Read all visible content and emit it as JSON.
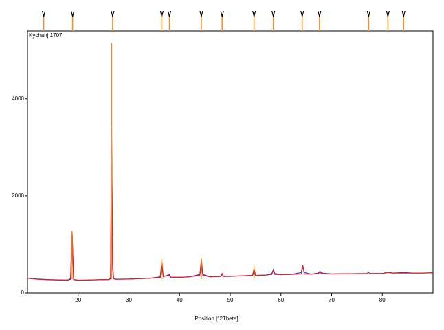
{
  "chart_data": {
    "type": "line",
    "annotation": "Kychanj 1707",
    "x_label": "Position [°2Theta]",
    "xlim": [
      10,
      90
    ],
    "xticks": [
      20,
      30,
      40,
      50,
      60,
      70,
      80
    ],
    "ylim": [
      0,
      5400
    ],
    "yticks": [
      0,
      2000,
      4000
    ],
    "x": [
      10,
      12,
      14,
      16,
      18,
      18.5,
      18.8,
      19.1,
      20,
      22,
      24,
      26,
      26.4,
      26.6,
      26.8,
      27.0,
      27.4,
      30,
      34,
      36.2,
      36.5,
      36.8,
      38.0,
      38.3,
      40,
      42,
      44.0,
      44.3,
      44.6,
      46,
      48.1,
      48.4,
      48.7,
      50,
      52,
      54.4,
      54.7,
      55.0,
      57,
      58.2,
      58.5,
      58.8,
      60,
      62,
      64.0,
      64.3,
      64.6,
      66,
      67.4,
      67.7,
      68.0,
      70,
      74,
      77.0,
      77.3,
      77.6,
      80,
      81.1,
      82,
      84.2,
      86,
      88,
      90
    ],
    "series": [
      {
        "color": "#e0201b",
        "values": [
          300,
          280,
          270,
          265,
          262,
          300,
          1270,
          270,
          260,
          265,
          270,
          275,
          300,
          3400,
          500,
          290,
          280,
          285,
          300,
          320,
          650,
          330,
          380,
          320,
          320,
          330,
          360,
          700,
          360,
          330,
          340,
          400,
          340,
          340,
          350,
          360,
          500,
          360,
          365,
          380,
          470,
          380,
          375,
          380,
          390,
          560,
          390,
          385,
          400,
          430,
          400,
          390,
          395,
          400,
          420,
          400,
          400,
          420,
          410,
          410,
          410,
          410,
          415
        ]
      },
      {
        "color": "#2a2ae0",
        "values": [
          300,
          285,
          275,
          268,
          265,
          280,
          1230,
          275,
          262,
          265,
          270,
          275,
          290,
          3100,
          560,
          300,
          282,
          285,
          300,
          330,
          580,
          340,
          360,
          320,
          320,
          330,
          380,
          560,
          380,
          330,
          340,
          380,
          340,
          340,
          350,
          360,
          420,
          360,
          365,
          400,
          480,
          400,
          375,
          380,
          420,
          570,
          420,
          385,
          410,
          450,
          410,
          390,
          395,
          400,
          420,
          400,
          400,
          430,
          410,
          420,
          410,
          410,
          415
        ]
      }
    ],
    "sticks": {
      "color": "#ff8c1a",
      "x": [
        18.8,
        26.6,
        36.5,
        44.3,
        54.7
      ],
      "values": [
        1250,
        5150,
        700,
        720,
        560
      ]
    },
    "reference_peaks": {
      "color": "#ff8c1a",
      "x": [
        13.2,
        18.9,
        26.8,
        36.5,
        38.0,
        44.3,
        48.4,
        54.7,
        58.5,
        64.2,
        67.6,
        77.3,
        81.1,
        84.2
      ]
    }
  }
}
